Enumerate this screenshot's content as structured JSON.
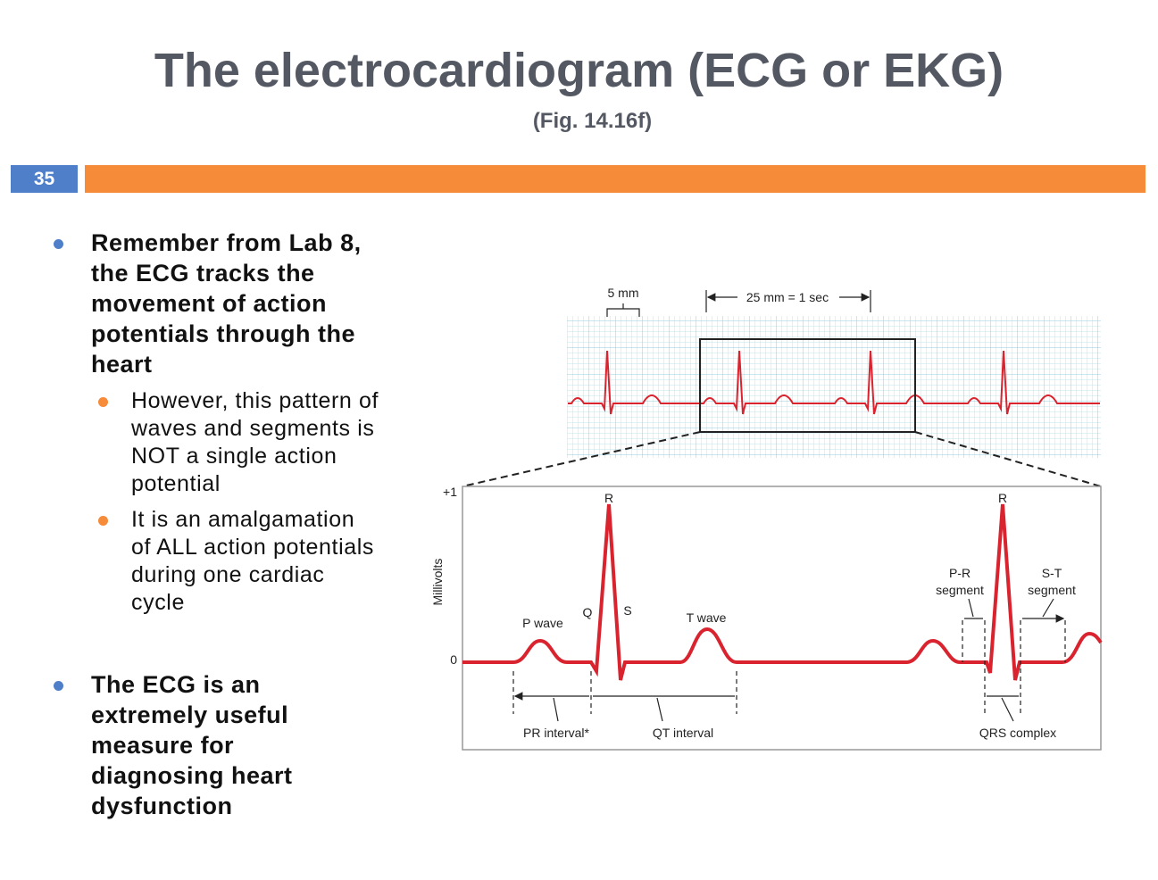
{
  "header": {
    "title": "The electrocardiogram (ECG or EKG)",
    "subtitle": "(Fig. 14.16f)",
    "slide_number": "35"
  },
  "bullets": [
    {
      "lines": [
        "Remember from Lab 8,",
        "the ECG tracks the",
        "movement of action",
        "potentials through the",
        "heart"
      ],
      "sub": [
        {
          "lines": [
            "However, this pattern of",
            "waves and segments is",
            "NOT a single action",
            "potential"
          ]
        },
        {
          "lines": [
            "It is an amalgamation",
            "of ALL action potentials",
            "during one cardiac",
            "cycle"
          ]
        }
      ]
    },
    {
      "lines": [
        "The ECG is an",
        "extremely useful",
        "measure for",
        "diagnosing heart",
        "dysfunction"
      ],
      "sub": []
    }
  ],
  "figure": {
    "scale_5mm": "5 mm",
    "scale_25mm": "25 mm = 1 sec",
    "y_top": "+1",
    "y_zero": "0",
    "y_axis": "Millivolts",
    "r1": "R",
    "r2": "R",
    "p_wave": "P wave",
    "q": "Q",
    "s": "S",
    "t_wave": "T wave",
    "pr_segment": [
      "P-R",
      "segment"
    ],
    "st_segment": [
      "S-T",
      "segment"
    ],
    "pr_interval": "PR interval*",
    "qt_interval": "QT interval",
    "qrs_complex": "QRS complex"
  }
}
